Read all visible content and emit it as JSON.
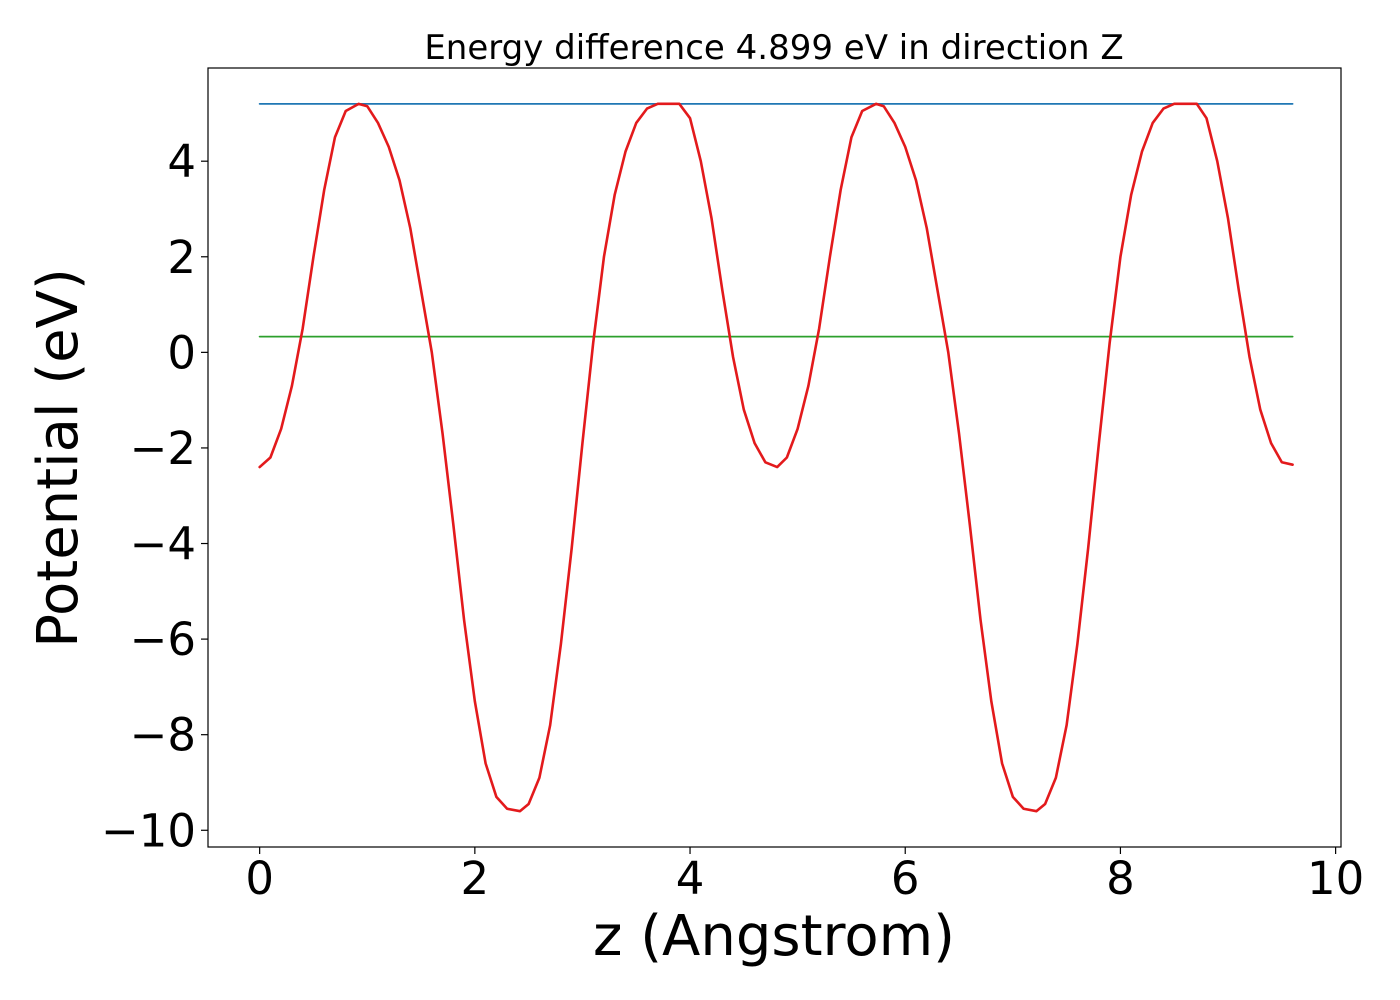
{
  "chart_data": {
    "type": "line",
    "title": "Energy difference 4.899 eV in direction Z",
    "xlabel": "z (Angstrom)",
    "ylabel": "Potential (eV)",
    "xlim": [
      -0.48,
      10.05
    ],
    "ylim": [
      -10.35,
      5.95
    ],
    "xticks": [
      0,
      2,
      4,
      6,
      8,
      10
    ],
    "xtick_labels": [
      "0",
      "2",
      "4",
      "6",
      "8",
      "10"
    ],
    "yticks": [
      4,
      2,
      0,
      -2,
      -4,
      -6,
      -8,
      -10
    ],
    "ytick_labels": [
      "4",
      "2",
      "0",
      "−2",
      "−4",
      "−6",
      "−8",
      "−10"
    ],
    "grid": false,
    "colors": {
      "potential": "#e31a1c",
      "vacuum_level": "#1f77b4",
      "average": "#2ca02c"
    },
    "series": [
      {
        "key": "potential",
        "x": [
          0.0,
          0.1,
          0.2,
          0.3,
          0.4,
          0.5,
          0.6,
          0.7,
          0.8,
          0.92,
          1.0,
          1.1,
          1.2,
          1.3,
          1.4,
          1.5,
          1.6,
          1.7,
          1.8,
          1.9,
          2.0,
          2.1,
          2.2,
          2.3,
          2.42,
          2.5,
          2.6,
          2.7,
          2.8,
          2.9,
          3.0,
          3.1,
          3.2,
          3.3,
          3.4,
          3.5,
          3.6,
          3.7,
          3.8,
          3.9,
          4.0,
          4.1,
          4.2,
          4.3,
          4.4,
          4.5,
          4.6,
          4.7,
          4.81,
          4.9,
          5.0,
          5.1,
          5.2,
          5.3,
          5.4,
          5.5,
          5.6,
          5.73,
          5.8,
          5.9,
          6.0,
          6.1,
          6.2,
          6.3,
          6.4,
          6.5,
          6.6,
          6.7,
          6.8,
          6.9,
          7.0,
          7.1,
          7.22,
          7.3,
          7.4,
          7.5,
          7.6,
          7.7,
          7.8,
          7.9,
          8.0,
          8.1,
          8.2,
          8.3,
          8.4,
          8.5,
          8.6,
          8.71,
          8.8,
          8.9,
          9.0,
          9.1,
          9.2,
          9.3,
          9.4,
          9.5,
          9.6
        ],
        "values": [
          -2.4,
          -2.2,
          -1.6,
          -0.7,
          0.5,
          2.0,
          3.4,
          4.5,
          5.05,
          5.2,
          5.15,
          4.8,
          4.3,
          3.6,
          2.6,
          1.3,
          0.0,
          -1.7,
          -3.6,
          -5.6,
          -7.3,
          -8.6,
          -9.3,
          -9.55,
          -9.6,
          -9.45,
          -8.9,
          -7.8,
          -6.1,
          -4.1,
          -1.9,
          0.2,
          2.0,
          3.3,
          4.2,
          4.8,
          5.1,
          5.2,
          5.2,
          5.2,
          4.9,
          4.0,
          2.8,
          1.3,
          -0.1,
          -1.2,
          -1.9,
          -2.3,
          -2.4,
          -2.2,
          -1.6,
          -0.7,
          0.5,
          2.0,
          3.4,
          4.5,
          5.05,
          5.2,
          5.15,
          4.8,
          4.3,
          3.6,
          2.6,
          1.3,
          0.0,
          -1.7,
          -3.6,
          -5.6,
          -7.3,
          -8.6,
          -9.3,
          -9.55,
          -9.6,
          -9.45,
          -8.9,
          -7.8,
          -6.1,
          -4.1,
          -1.9,
          0.2,
          2.0,
          3.3,
          4.2,
          4.8,
          5.1,
          5.2,
          5.2,
          5.2,
          4.9,
          4.0,
          2.8,
          1.3,
          -0.1,
          -1.2,
          -1.9,
          -2.3,
          -2.35
        ]
      },
      {
        "key": "vacuum_level",
        "x": [
          0.0,
          9.6
        ],
        "values": [
          5.2,
          5.2
        ]
      },
      {
        "key": "average",
        "x": [
          0.0,
          9.6
        ],
        "values": [
          0.33,
          0.33
        ]
      }
    ]
  }
}
